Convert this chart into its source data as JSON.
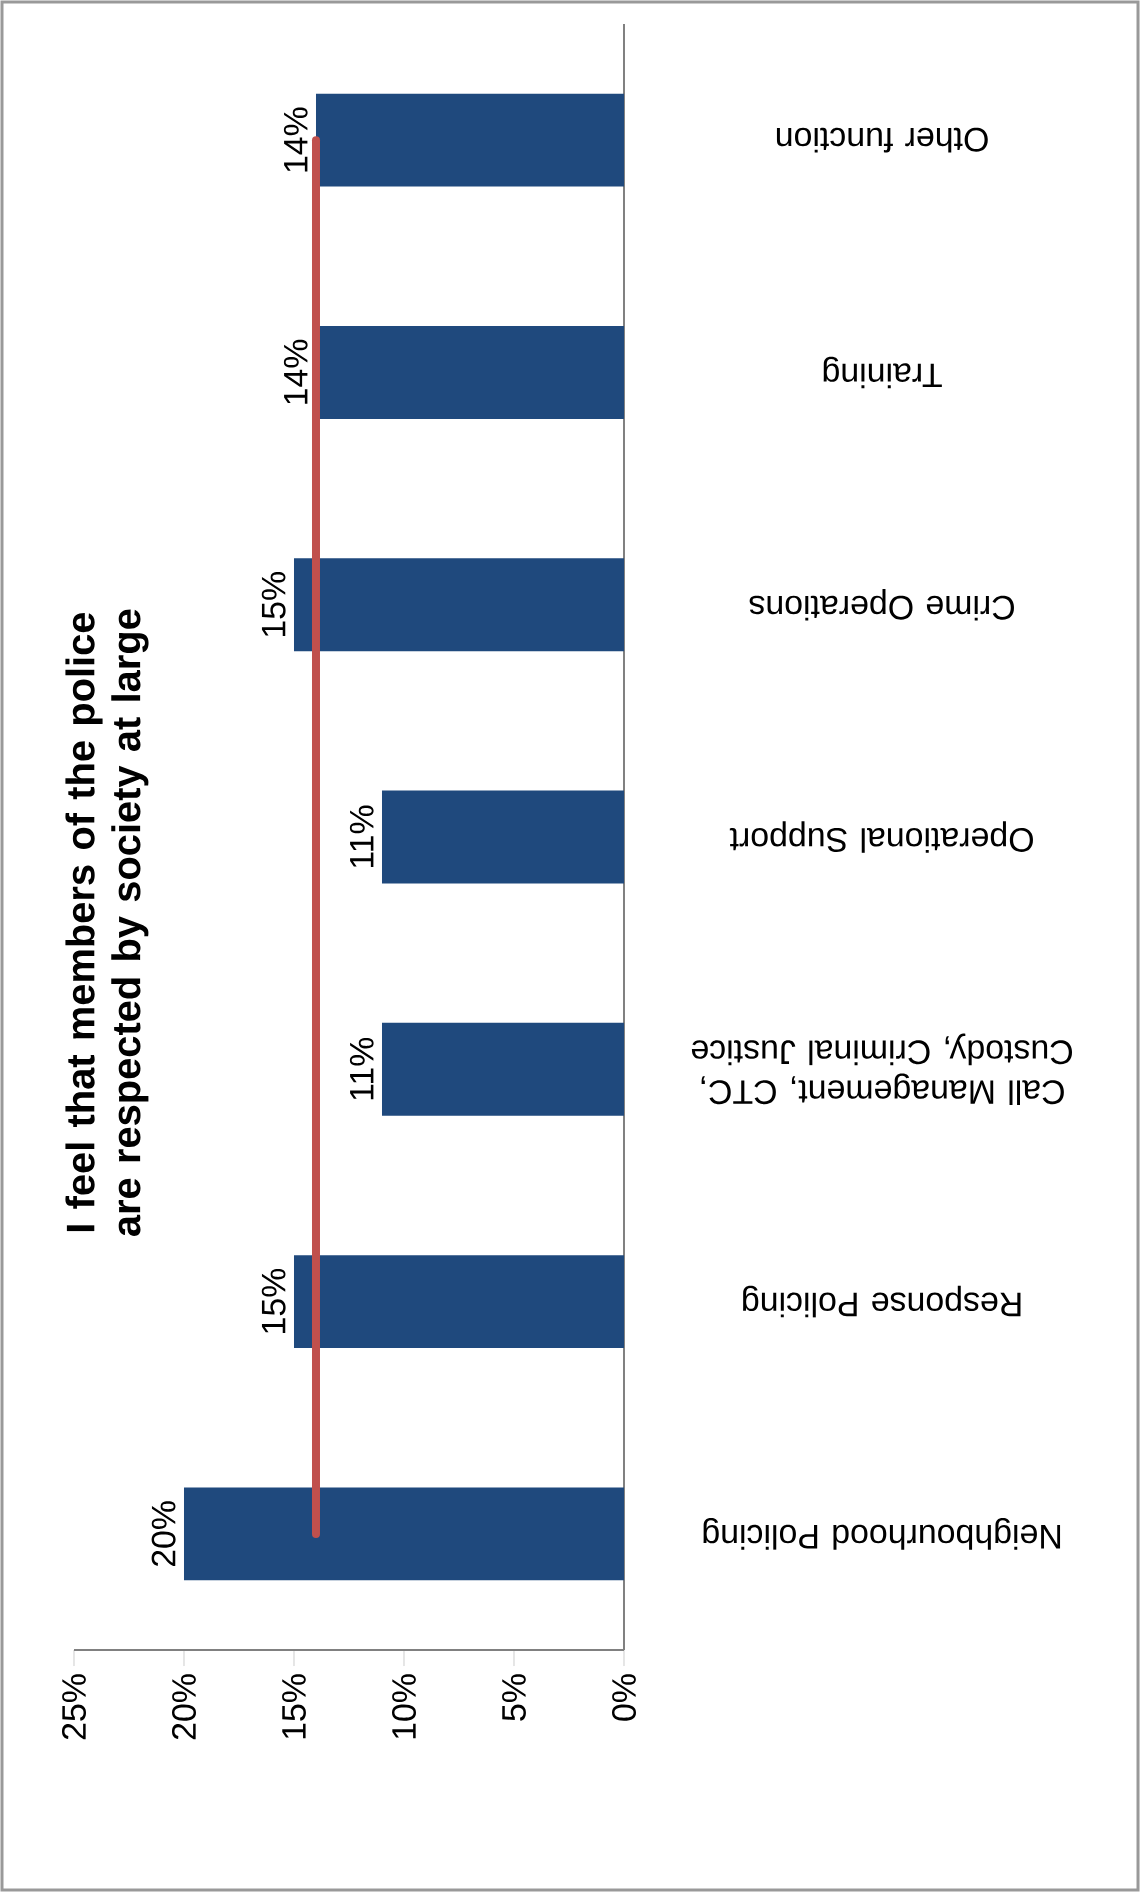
{
  "chart_data": {
    "type": "bar",
    "orientation": "horizontal",
    "title": "I feel that members of the police are respected by society at large",
    "categories": [
      "Other function",
      "Training",
      "Crime Operations",
      "Operational Support",
      "Call Management, CTC, Custody, Criminal Justice",
      "Response Policing",
      "Neighbourhood Policing"
    ],
    "series": [
      {
        "color": "#1f497d",
        "values": [
          14,
          14,
          15,
          11,
          11,
          15,
          20
        ]
      }
    ],
    "xlim": [
      25,
      0
    ],
    "xticks": [
      {
        "value": 25,
        "label": "25%"
      },
      {
        "value": 20,
        "label": "20%"
      },
      {
        "value": 15,
        "label": "15%"
      },
      {
        "value": 10,
        "label": "10%"
      },
      {
        "value": 5,
        "label": "5%"
      },
      {
        "value": 0,
        "label": "0%"
      }
    ],
    "value_labels": [
      "14%",
      "14%",
      "15%",
      "11%",
      "11%",
      "15%",
      "20%"
    ],
    "ref_lines": [
      {
        "axis": "x",
        "value": 14,
        "color": "#c0504d"
      }
    ]
  }
}
